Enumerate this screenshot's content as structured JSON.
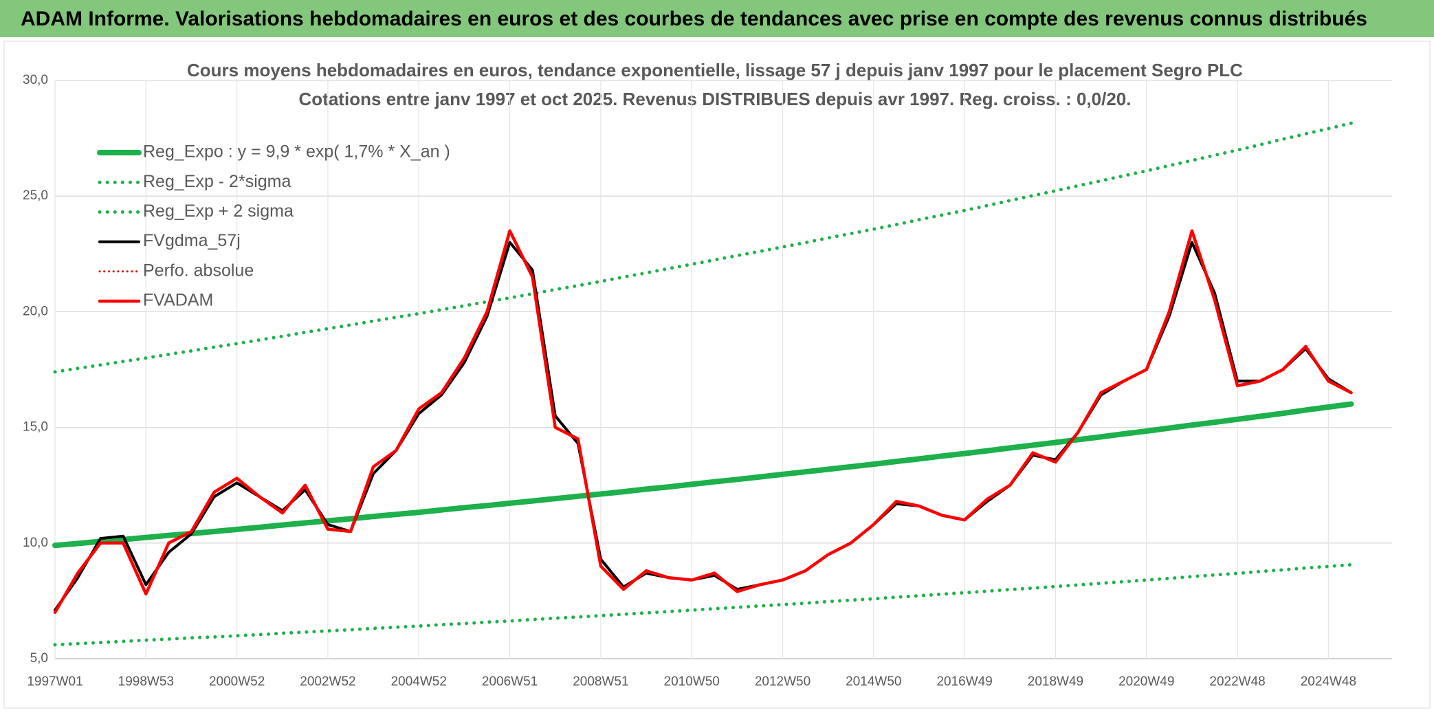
{
  "header": {
    "title": "ADAM Informe. Valorisations hebdomadaires en euros et des courbes de tendances avec prise en compte des revenus connus distribués"
  },
  "chart_data": {
    "type": "line",
    "title": "Cours moyens hebdomadaires en euros, tendance exponentielle, lissage 57 j depuis janv 1997 pour le placement Segro PLC",
    "subtitle": "Cotations entre janv 1997 et oct 2025. Revenus DISTRIBUES depuis avr 1997. Reg. croiss. : 0,0/20.",
    "categories": [
      "1997W01",
      null,
      null,
      null,
      "1998W53",
      null,
      null,
      null,
      "2000W52",
      null,
      null,
      null,
      "2002W52",
      null,
      null,
      null,
      "2004W52",
      null,
      null,
      null,
      "2006W51",
      null,
      null,
      null,
      "2008W51",
      null,
      null,
      null,
      "2010W50",
      null,
      null,
      null,
      "2012W50",
      null,
      null,
      null,
      "2014W50",
      null,
      null,
      null,
      "2016W49",
      null,
      null,
      null,
      "2018W49",
      null,
      null,
      null,
      "2020W49",
      null,
      null,
      null,
      "2022W48",
      null,
      null,
      null,
      "2024W48",
      null
    ],
    "ylim": [
      5,
      30
    ],
    "yticks": [
      {
        "value": 5,
        "label": "5,0"
      },
      {
        "value": 10,
        "label": "10,0"
      },
      {
        "value": 15,
        "label": "15,0"
      },
      {
        "value": 20,
        "label": "20,0"
      },
      {
        "value": 25,
        "label": "25,0"
      },
      {
        "value": 30,
        "label": "30,0"
      }
    ],
    "grid": true,
    "legend": "upper left",
    "series": [
      {
        "name": "Reg_Expo : y = 9,9 * exp( 1,7% *  X_an )",
        "color": "#1db04b",
        "style": "solid",
        "values": [
          9.9,
          9.98,
          10.07,
          10.15,
          10.24,
          10.33,
          10.41,
          10.5,
          10.59,
          10.68,
          10.78,
          10.87,
          10.96,
          11.05,
          11.15,
          11.24,
          11.33,
          11.43,
          11.53,
          11.62,
          11.72,
          11.82,
          11.92,
          12.02,
          12.12,
          12.22,
          12.33,
          12.43,
          12.54,
          12.65,
          12.75,
          12.86,
          12.97,
          13.08,
          13.19,
          13.3,
          13.41,
          13.53,
          13.64,
          13.76,
          13.87,
          13.99,
          14.11,
          14.23,
          14.35,
          14.47,
          14.59,
          14.72,
          14.84,
          14.97,
          15.1,
          15.22,
          15.35,
          15.48,
          15.61,
          15.75,
          15.88,
          16.01
        ]
      },
      {
        "name": "Reg_Exp - 2*sigma",
        "color": "#1db04b",
        "style": "dotted",
        "values": [
          5.6,
          5.65,
          5.7,
          5.75,
          5.8,
          5.85,
          5.9,
          5.94,
          5.99,
          6.04,
          6.1,
          6.15,
          6.2,
          6.25,
          6.31,
          6.36,
          6.41,
          6.47,
          6.52,
          6.58,
          6.63,
          6.69,
          6.75,
          6.8,
          6.86,
          6.92,
          6.98,
          7.04,
          7.1,
          7.16,
          7.22,
          7.28,
          7.34,
          7.4,
          7.47,
          7.53,
          7.59,
          7.66,
          7.72,
          7.79,
          7.85,
          7.92,
          7.99,
          8.05,
          8.12,
          8.19,
          8.26,
          8.33,
          8.4,
          8.47,
          8.55,
          8.62,
          8.69,
          8.77,
          8.84,
          8.92,
          8.99,
          9.06
        ]
      },
      {
        "name": "Reg_Exp + 2 sigma",
        "color": "#1db04b",
        "style": "dotted",
        "values": [
          17.4,
          17.55,
          17.7,
          17.85,
          18.0,
          18.16,
          18.31,
          18.47,
          18.62,
          18.78,
          18.94,
          19.11,
          19.27,
          19.43,
          19.6,
          19.76,
          19.92,
          20.09,
          20.26,
          20.43,
          20.6,
          20.78,
          20.96,
          21.13,
          21.31,
          21.5,
          21.68,
          21.87,
          22.05,
          22.24,
          22.43,
          22.61,
          22.8,
          22.99,
          23.19,
          23.38,
          23.57,
          23.77,
          23.98,
          24.18,
          24.38,
          24.59,
          24.81,
          25.02,
          25.23,
          25.45,
          25.66,
          25.88,
          26.09,
          26.32,
          26.54,
          26.77,
          26.99,
          27.22,
          27.46,
          27.69,
          27.92,
          28.15
        ]
      },
      {
        "name": "FVgdma_57j",
        "color": "#000000",
        "style": "solid",
        "values": [
          7.1,
          8.5,
          10.2,
          10.3,
          8.2,
          9.6,
          10.4,
          12.0,
          12.6,
          12.0,
          11.4,
          12.3,
          10.8,
          10.5,
          13.0,
          14.0,
          15.6,
          16.4,
          17.8,
          19.8,
          23.0,
          21.8,
          15.5,
          14.3,
          9.3,
          8.1,
          8.7,
          8.5,
          8.4,
          8.6,
          8.0,
          8.2,
          8.4,
          8.8,
          9.5,
          10.0,
          10.8,
          11.7,
          11.6,
          11.2,
          11.0,
          11.8,
          12.5,
          13.8,
          13.6,
          14.8,
          16.4,
          17.0,
          17.5,
          19.8,
          23.0,
          20.8,
          17.0,
          17.0,
          17.5,
          18.4,
          17.1,
          16.5
        ]
      },
      {
        "name": "Perfo. absolue",
        "color": "#e00000",
        "style": "dotted",
        "values": [
          7.0,
          8.7,
          10.0,
          10.0,
          7.8,
          10.0,
          10.5,
          12.2,
          12.8,
          12.0,
          11.3,
          12.5,
          10.6,
          10.5,
          13.3,
          14.0,
          15.8,
          16.5,
          18.0,
          20.0,
          23.5,
          21.5,
          15.0,
          14.5,
          9.0,
          8.0,
          8.8,
          8.5,
          8.4,
          8.7,
          7.9,
          8.2,
          8.4,
          8.8,
          9.5,
          10.0,
          10.8,
          11.8,
          11.6,
          11.2,
          11.0,
          11.9,
          12.5,
          13.9,
          13.5,
          14.8,
          16.5,
          17.0,
          17.5,
          20.0,
          23.5,
          20.5,
          16.8,
          17.0,
          17.5,
          18.5,
          17.0,
          16.5
        ]
      },
      {
        "name": "FVADAM",
        "color": "#ff0000",
        "style": "solid",
        "values": [
          7.0,
          8.7,
          10.0,
          10.0,
          7.8,
          10.0,
          10.5,
          12.2,
          12.8,
          12.0,
          11.3,
          12.5,
          10.6,
          10.5,
          13.3,
          14.0,
          15.8,
          16.5,
          18.0,
          20.0,
          23.5,
          21.5,
          15.0,
          14.5,
          9.0,
          8.0,
          8.8,
          8.5,
          8.4,
          8.7,
          7.9,
          8.2,
          8.4,
          8.8,
          9.5,
          10.0,
          10.8,
          11.8,
          11.6,
          11.2,
          11.0,
          11.9,
          12.5,
          13.9,
          13.5,
          14.8,
          16.5,
          17.0,
          17.5,
          20.0,
          23.5,
          20.5,
          16.8,
          17.0,
          17.5,
          18.5,
          17.0,
          16.5
        ]
      }
    ]
  }
}
